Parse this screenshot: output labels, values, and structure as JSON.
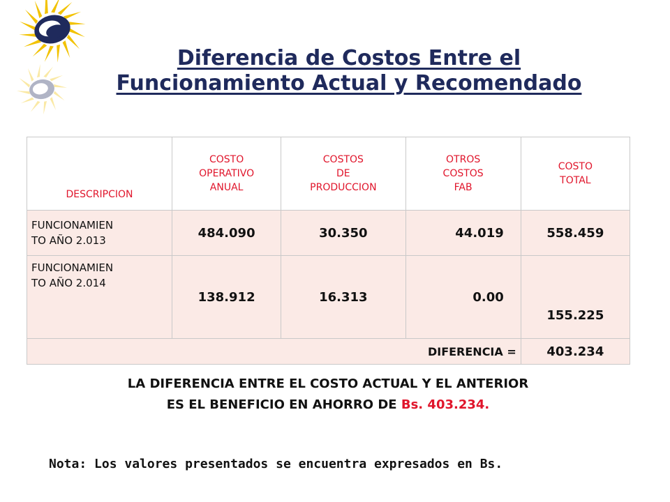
{
  "title": {
    "line1": "Diferencia de Costos Entre el",
    "line2": "Funcionamiento Actual y Recomendado"
  },
  "table": {
    "headers": {
      "description": "DESCRIPCION",
      "operating_cost": [
        "COSTO",
        "OPERATIVO",
        "ANUAL"
      ],
      "production_costs": [
        "COSTOS",
        "DE",
        "PRODUCCION"
      ],
      "other_costs": [
        "OTROS",
        "COSTOS",
        "FAB"
      ],
      "total_cost": [
        "COSTO",
        "TOTAL"
      ]
    },
    "rows": [
      {
        "label": [
          "FUNCIONAMIEN",
          "TO AÑO 2.013"
        ],
        "operating": "484.090",
        "production": "30.350",
        "other": "44.019",
        "total": "558.459"
      },
      {
        "label": [
          "FUNCIONAMIEN",
          "TO AÑO 2.014"
        ],
        "operating": "138.912",
        "production": "16.313",
        "other": "0.00",
        "total": "155.225"
      }
    ],
    "difference_label": "DIFERENCIA =",
    "difference_value": "403.234"
  },
  "conclusion": {
    "line1": "LA DIFERENCIA ENTRE EL COSTO ACTUAL Y EL ANTERIOR",
    "line2_prefix": "ES EL BENEFICIO EN AHORRO DE",
    "line2_amount": "Bs. 403.234."
  },
  "note": "Nota: Los valores presentados se encuentra expresados en Bs.",
  "colors": {
    "title": "#1f2a5c",
    "header_text": "#e0152b",
    "cell_fill": "#fbeae6",
    "logo_yellow": "#f2c200",
    "logo_navy": "#1f2a5c"
  },
  "icons": {
    "logo": "sunburst-logo-icon"
  }
}
